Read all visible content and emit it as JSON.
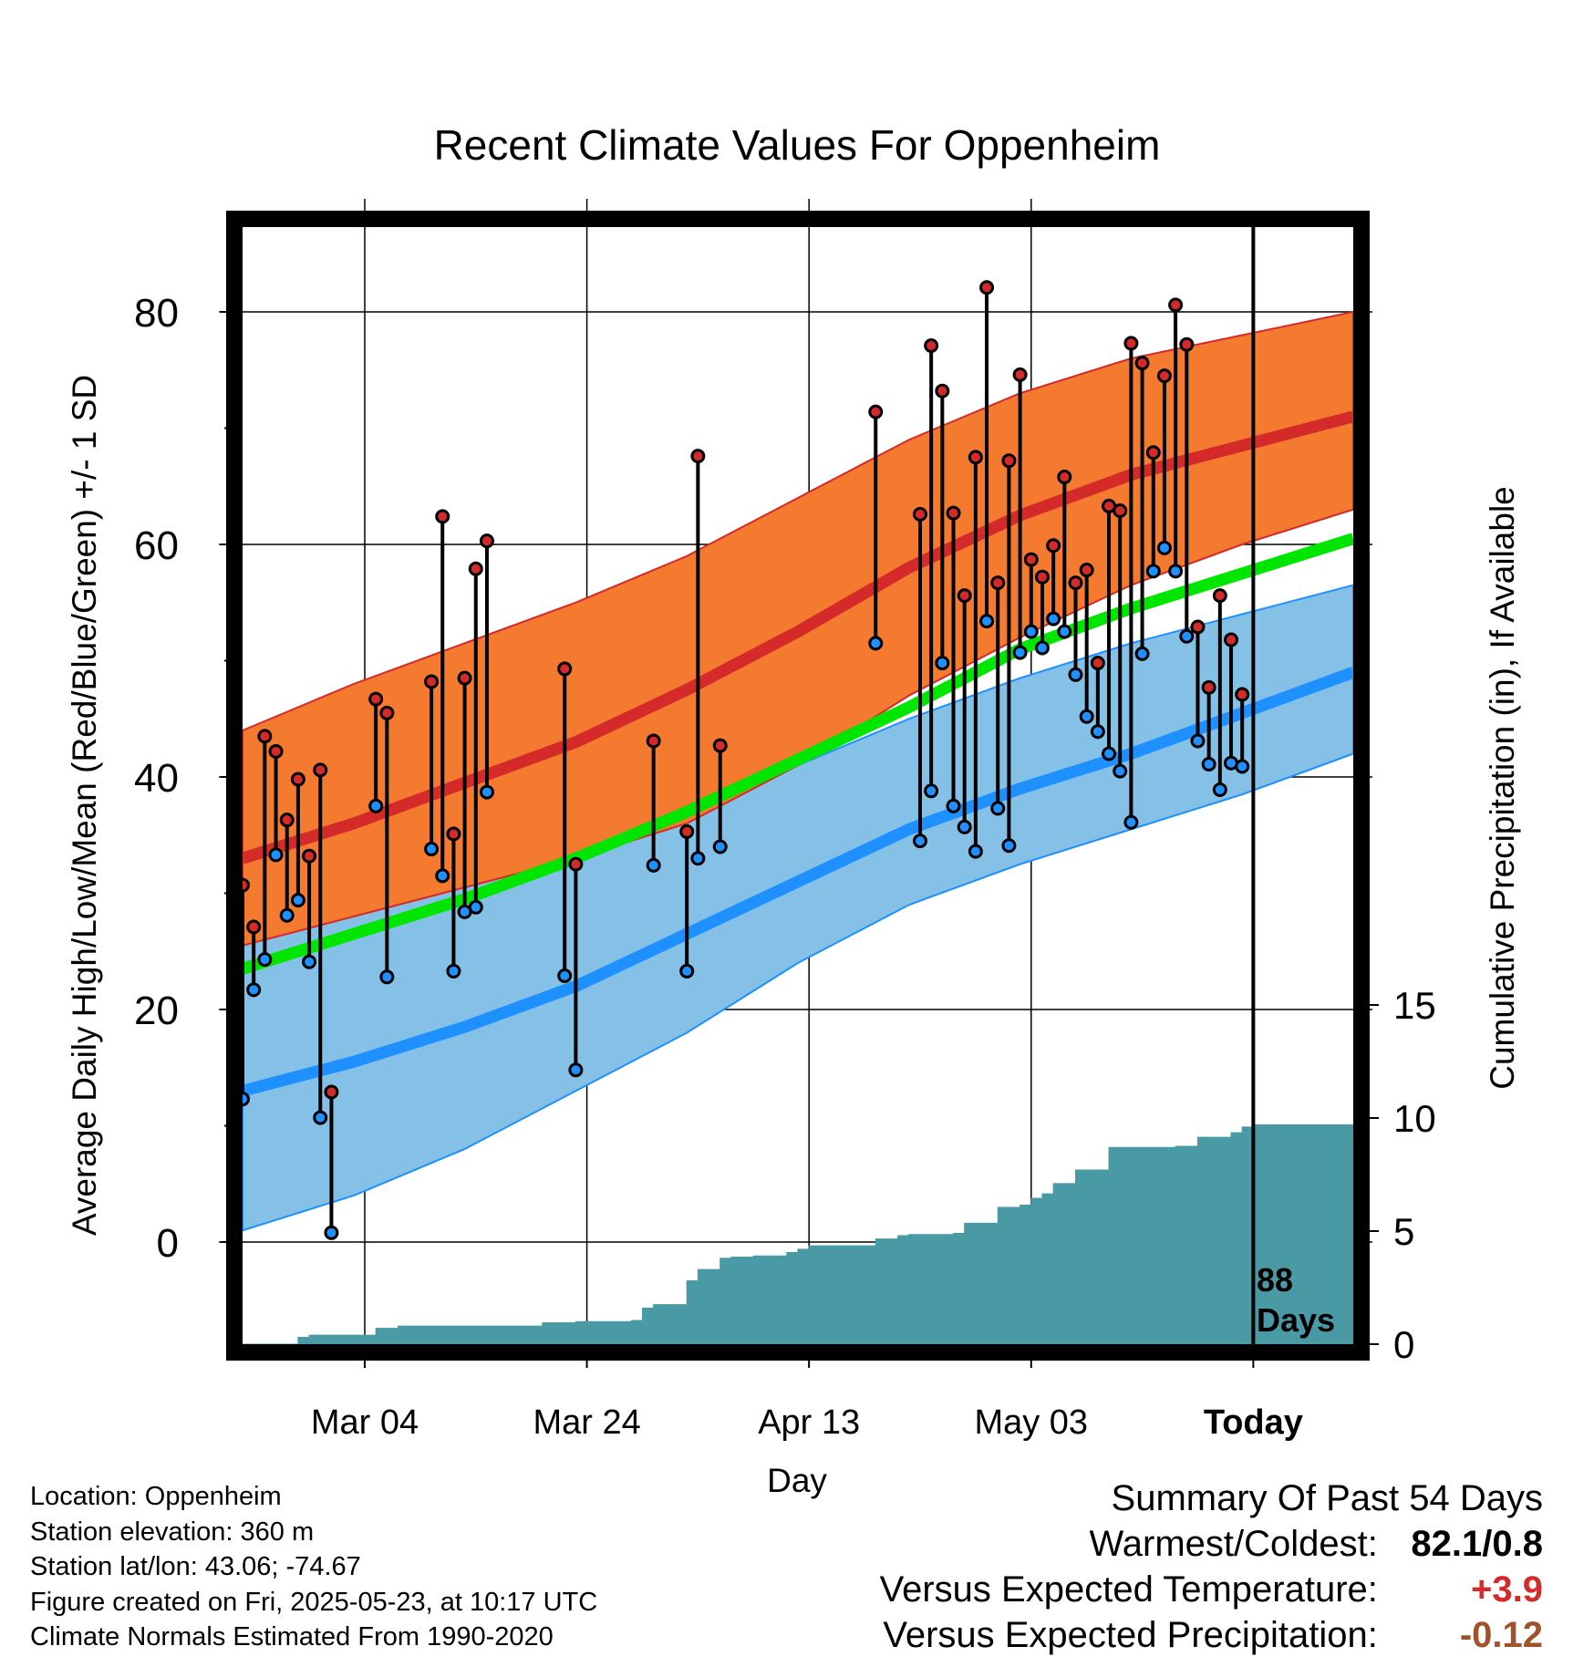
{
  "chart_data": {
    "type": "line",
    "title": "Recent Climate Values For Oppenheim",
    "xlabel": "Day",
    "ylabel": "Average Daily High/Low/Mean (Red/Blue/Green) +/- 1 SD",
    "y2label": "Cumulative Precipitation (in), If Available",
    "ylim": [
      -8.5,
      88
    ],
    "y2lim": [
      0,
      44.2
    ],
    "x_ticks": [
      {
        "label": "Mar 04",
        "day": 11
      },
      {
        "label": "Mar 24",
        "day": 31
      },
      {
        "label": "Apr 13",
        "day": 51
      },
      {
        "label": "May 03",
        "day": 71
      },
      {
        "label": "Today",
        "day": 91
      }
    ],
    "y_ticks": [
      0,
      20,
      40,
      60,
      80
    ],
    "y2_ticks": [
      0,
      5,
      10,
      15
    ],
    "grid": true,
    "today_marker": {
      "day": 91,
      "label_line1": "88",
      "label_line2": "Days"
    },
    "normals": {
      "days": [
        0,
        10,
        20,
        30,
        40,
        50,
        60,
        70,
        80,
        90,
        100
      ],
      "high_mean": [
        33,
        36,
        39.5,
        43,
        47.5,
        52.5,
        58,
        62.5,
        66,
        68.5,
        71
      ],
      "high_upper": [
        44,
        48,
        51.5,
        55,
        59,
        64,
        69,
        73,
        76,
        78,
        80
      ],
      "high_lower": [
        25.5,
        28,
        30.5,
        33,
        36,
        41,
        47,
        52,
        56.5,
        60,
        63
      ],
      "low_mean": [
        13,
        15.5,
        18.5,
        22,
        26.5,
        31,
        35.5,
        39,
        42,
        45.5,
        49
      ],
      "low_upper": [
        26,
        29,
        31,
        34,
        37,
        41,
        45,
        48.5,
        51.5,
        54,
        56.5
      ],
      "low_lower": [
        1,
        4,
        8,
        13,
        18,
        24,
        29,
        32.5,
        35.5,
        38.5,
        42
      ],
      "avg_mean": [
        23.5,
        26.5,
        29.5,
        33,
        37,
        41.5,
        46,
        51,
        54.5,
        57.5,
        60.5
      ]
    },
    "series": [
      {
        "name": "Daily High/Low",
        "points": [
          {
            "day": 0,
            "high": 30.7,
            "low": 12.3
          },
          {
            "day": 1,
            "high": 27.1,
            "low": 21.7
          },
          {
            "day": 2,
            "high": 43.5,
            "low": 24.3
          },
          {
            "day": 3,
            "high": 42.2,
            "low": 33.3
          },
          {
            "day": 4,
            "high": 36.3,
            "low": 28.1
          },
          {
            "day": 5,
            "high": 39.8,
            "low": 29.4
          },
          {
            "day": 6,
            "high": 33.2,
            "low": 24.1
          },
          {
            "day": 7,
            "high": 40.6,
            "low": 10.7
          },
          {
            "day": 8,
            "high": 12.9,
            "low": 0.8
          },
          {
            "day": 12,
            "high": 46.7,
            "low": 37.5
          },
          {
            "day": 13,
            "high": 45.5,
            "low": 22.8
          },
          {
            "day": 17,
            "high": 48.2,
            "low": 33.8
          },
          {
            "day": 18,
            "high": 62.4,
            "low": 31.5
          },
          {
            "day": 19,
            "high": 35.1,
            "low": 23.3
          },
          {
            "day": 20,
            "high": 48.5,
            "low": 28.4
          },
          {
            "day": 21,
            "high": 57.9,
            "low": 28.8
          },
          {
            "day": 22,
            "high": 60.3,
            "low": 38.7
          },
          {
            "day": 29,
            "high": 49.3,
            "low": 22.9
          },
          {
            "day": 30,
            "high": 32.5,
            "low": 14.8
          },
          {
            "day": 37,
            "high": 43.1,
            "low": 32.4
          },
          {
            "day": 40,
            "high": 35.3,
            "low": 23.3
          },
          {
            "day": 41,
            "high": 67.6,
            "low": 33.0
          },
          {
            "day": 43,
            "high": 42.7,
            "low": 34.0
          },
          {
            "day": 57,
            "high": 71.4,
            "low": 51.5
          },
          {
            "day": 61,
            "high": 62.6,
            "low": 34.5
          },
          {
            "day": 62,
            "high": 77.1,
            "low": 38.8
          },
          {
            "day": 63,
            "high": 73.2,
            "low": 49.8
          },
          {
            "day": 64,
            "high": 62.7,
            "low": 37.5
          },
          {
            "day": 65,
            "high": 55.6,
            "low": 35.7
          },
          {
            "day": 66,
            "high": 67.5,
            "low": 33.6
          },
          {
            "day": 67,
            "high": 82.1,
            "low": 53.4
          },
          {
            "day": 68,
            "high": 56.7,
            "low": 37.3
          },
          {
            "day": 69,
            "high": 67.2,
            "low": 34.1
          },
          {
            "day": 70,
            "high": 74.6,
            "low": 50.7
          },
          {
            "day": 71,
            "high": 58.7,
            "low": 52.5
          },
          {
            "day": 72,
            "high": 57.2,
            "low": 51.1
          },
          {
            "day": 73,
            "high": 59.9,
            "low": 53.6
          },
          {
            "day": 74,
            "high": 65.8,
            "low": 52.5
          },
          {
            "day": 75,
            "high": 56.7,
            "low": 48.8
          },
          {
            "day": 76,
            "high": 57.8,
            "low": 45.2
          },
          {
            "day": 77,
            "high": 49.8,
            "low": 43.9
          },
          {
            "day": 78,
            "high": 63.3,
            "low": 42.0
          },
          {
            "day": 79,
            "high": 62.9,
            "low": 40.5
          },
          {
            "day": 80,
            "high": 77.3,
            "low": 36.1
          },
          {
            "day": 81,
            "high": 75.6,
            "low": 50.6
          },
          {
            "day": 82,
            "high": 67.9,
            "low": 57.7
          },
          {
            "day": 83,
            "high": 74.5,
            "low": 59.7
          },
          {
            "day": 84,
            "high": 80.6,
            "low": 57.7
          },
          {
            "day": 85,
            "high": 77.2,
            "low": 52.1
          },
          {
            "day": 86,
            "high": 52.9,
            "low": 43.1
          },
          {
            "day": 87,
            "high": 47.7,
            "low": 41.1
          },
          {
            "day": 88,
            "high": 55.6,
            "low": 38.9
          },
          {
            "day": 89,
            "high": 51.8,
            "low": 41.2
          },
          {
            "day": 90,
            "high": 47.1,
            "low": 40.9
          }
        ]
      }
    ],
    "precipitation": {
      "name": "Cumulative Precipitation",
      "days": [
        0,
        4,
        5,
        6,
        11,
        12,
        14,
        19,
        26,
        27,
        30,
        35,
        36,
        37,
        39,
        40,
        41,
        42,
        43,
        44,
        46,
        48,
        49,
        50,
        51,
        52,
        55,
        57,
        58,
        59,
        60,
        61,
        62,
        63,
        64,
        65,
        66,
        67,
        68,
        69,
        70,
        71,
        72,
        73,
        74,
        75,
        76,
        77,
        78,
        79,
        80,
        81,
        84,
        85,
        86,
        88,
        89,
        90,
        91,
        100
      ],
      "values": [
        0,
        0,
        0.3,
        0.4,
        0.4,
        0.7,
        0.8,
        0.8,
        0.8,
        0.95,
        1.0,
        1.05,
        1.6,
        1.75,
        1.75,
        2.8,
        3.3,
        3.3,
        3.8,
        3.85,
        3.9,
        3.9,
        4.05,
        4.2,
        4.35,
        4.35,
        4.35,
        4.65,
        4.65,
        4.8,
        4.85,
        4.85,
        4.85,
        4.85,
        4.9,
        5.35,
        5.35,
        5.35,
        6.05,
        6.05,
        6.15,
        6.45,
        6.65,
        7.1,
        7.1,
        7.7,
        7.7,
        7.7,
        8.7,
        8.7,
        8.7,
        8.7,
        8.75,
        8.75,
        9.15,
        9.15,
        9.35,
        9.6,
        9.7,
        9.7
      ]
    }
  },
  "info": {
    "location": "Location: Oppenheim",
    "elevation": "Station elevation: 360 m",
    "latlon": "Station lat/lon: 43.06; -74.67",
    "created": "Figure created on Fri, 2025-05-23, at 10:17 UTC",
    "normals": "Climate Normals Estimated From 1990-2020"
  },
  "summary": {
    "title": "Summary Of Past 54 Days",
    "warmest_label": "Warmest/Coldest:",
    "warmest_value": "82.1/0.8",
    "temp_label": "Versus Expected Temperature:",
    "temp_value": "+3.9",
    "precip_label": "Versus Expected Precipitation:",
    "precip_value": "-0.12"
  },
  "colors": {
    "high_band": "#F37A2F",
    "high_mean": "#D42A2A",
    "low_band": "#85C1E6",
    "low_mean": "#1E90FF",
    "avg_mean": "#00E600",
    "precip": "#4A9AA5",
    "high_dot": "#D42A2A",
    "low_dot": "#1E90FF",
    "temp_positive": "#D42A2A",
    "precip_negative": "#A0522D"
  }
}
